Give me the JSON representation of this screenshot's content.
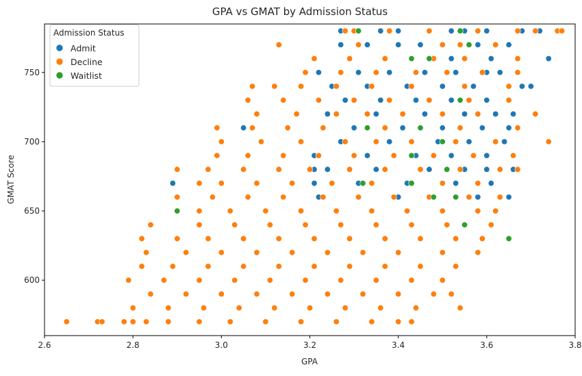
{
  "chart_data": {
    "type": "scatter",
    "title": "GPA vs GMAT by Admission Status",
    "xlabel": "GPA",
    "ylabel": "GMAT Score",
    "xlim": [
      2.6,
      3.8
    ],
    "ylim": [
      560,
      785
    ],
    "xticks": [
      "2.6",
      "2.8",
      "3.0",
      "3.2",
      "3.4",
      "3.6",
      "3.8"
    ],
    "yticks": [
      "600",
      "650",
      "700",
      "750"
    ],
    "grid": false,
    "legend": {
      "title": "Admission Status",
      "placement": "top-left"
    },
    "series": [
      {
        "name": "Admit",
        "color": "#1f77b4",
        "points": [
          [
            3.27,
            780
          ],
          [
            3.36,
            780
          ],
          [
            3.4,
            780
          ],
          [
            3.52,
            780
          ],
          [
            3.55,
            780
          ],
          [
            3.6,
            780
          ],
          [
            3.68,
            780
          ],
          [
            3.72,
            780
          ],
          [
            3.27,
            770
          ],
          [
            3.33,
            770
          ],
          [
            3.4,
            770
          ],
          [
            3.45,
            770
          ],
          [
            3.5,
            770
          ],
          [
            3.58,
            770
          ],
          [
            3.65,
            770
          ],
          [
            3.22,
            750
          ],
          [
            3.31,
            750
          ],
          [
            3.38,
            750
          ],
          [
            3.46,
            750
          ],
          [
            3.53,
            750
          ],
          [
            3.6,
            750
          ],
          [
            3.63,
            750
          ],
          [
            3.74,
            760
          ],
          [
            3.61,
            760
          ],
          [
            3.52,
            760
          ],
          [
            3.25,
            740
          ],
          [
            3.33,
            740
          ],
          [
            3.42,
            740
          ],
          [
            3.5,
            740
          ],
          [
            3.57,
            740
          ],
          [
            3.68,
            740
          ],
          [
            3.7,
            740
          ],
          [
            3.28,
            730
          ],
          [
            3.36,
            730
          ],
          [
            3.44,
            730
          ],
          [
            3.52,
            730
          ],
          [
            3.6,
            730
          ],
          [
            3.24,
            720
          ],
          [
            3.35,
            720
          ],
          [
            3.46,
            720
          ],
          [
            3.55,
            720
          ],
          [
            3.62,
            720
          ],
          [
            3.66,
            720
          ],
          [
            3.05,
            710
          ],
          [
            3.3,
            710
          ],
          [
            3.41,
            710
          ],
          [
            3.5,
            710
          ],
          [
            3.59,
            710
          ],
          [
            3.65,
            710
          ],
          [
            3.27,
            700
          ],
          [
            3.38,
            700
          ],
          [
            3.49,
            700
          ],
          [
            3.56,
            700
          ],
          [
            3.62,
            700
          ],
          [
            3.64,
            700
          ],
          [
            3.21,
            690
          ],
          [
            3.33,
            690
          ],
          [
            3.44,
            690
          ],
          [
            3.52,
            690
          ],
          [
            3.6,
            690
          ],
          [
            3.21,
            680
          ],
          [
            3.24,
            680
          ],
          [
            3.35,
            680
          ],
          [
            3.47,
            680
          ],
          [
            3.55,
            680
          ],
          [
            3.6,
            680
          ],
          [
            3.66,
            680
          ],
          [
            2.89,
            670
          ],
          [
            3.21,
            670
          ],
          [
            3.31,
            670
          ],
          [
            3.42,
            670
          ],
          [
            3.53,
            670
          ],
          [
            3.61,
            670
          ],
          [
            3.22,
            660
          ],
          [
            3.4,
            660
          ],
          [
            3.58,
            660
          ],
          [
            3.65,
            660
          ]
        ]
      },
      {
        "name": "Decline",
        "color": "#ff7f0e",
        "points": [
          [
            3.28,
            780
          ],
          [
            3.3,
            780
          ],
          [
            3.38,
            780
          ],
          [
            3.47,
            780
          ],
          [
            3.58,
            780
          ],
          [
            3.67,
            780
          ],
          [
            3.71,
            780
          ],
          [
            3.76,
            780
          ],
          [
            3.77,
            780
          ],
          [
            3.13,
            770
          ],
          [
            3.31,
            770
          ],
          [
            3.5,
            770
          ],
          [
            3.54,
            770
          ],
          [
            3.62,
            770
          ],
          [
            3.21,
            760
          ],
          [
            3.29,
            760
          ],
          [
            3.37,
            760
          ],
          [
            3.48,
            760
          ],
          [
            3.55,
            760
          ],
          [
            3.67,
            760
          ],
          [
            3.19,
            750
          ],
          [
            3.27,
            750
          ],
          [
            3.35,
            750
          ],
          [
            3.44,
            750
          ],
          [
            3.51,
            750
          ],
          [
            3.59,
            750
          ],
          [
            3.67,
            750
          ],
          [
            3.07,
            740
          ],
          [
            3.12,
            740
          ],
          [
            3.18,
            740
          ],
          [
            3.26,
            740
          ],
          [
            3.34,
            740
          ],
          [
            3.43,
            740
          ],
          [
            3.55,
            740
          ],
          [
            3.65,
            740
          ],
          [
            3.06,
            730
          ],
          [
            3.14,
            730
          ],
          [
            3.22,
            730
          ],
          [
            3.3,
            730
          ],
          [
            3.38,
            730
          ],
          [
            3.47,
            730
          ],
          [
            3.56,
            730
          ],
          [
            3.65,
            730
          ],
          [
            3.08,
            720
          ],
          [
            3.17,
            720
          ],
          [
            3.26,
            720
          ],
          [
            3.33,
            720
          ],
          [
            3.41,
            720
          ],
          [
            3.5,
            720
          ],
          [
            3.58,
            720
          ],
          [
            3.71,
            720
          ],
          [
            2.99,
            710
          ],
          [
            3.07,
            710
          ],
          [
            3.15,
            710
          ],
          [
            3.23,
            710
          ],
          [
            3.37,
            710
          ],
          [
            3.45,
            710
          ],
          [
            3.54,
            710
          ],
          [
            3.67,
            710
          ],
          [
            3.0,
            700
          ],
          [
            3.09,
            700
          ],
          [
            3.18,
            700
          ],
          [
            3.28,
            700
          ],
          [
            3.35,
            700
          ],
          [
            3.43,
            700
          ],
          [
            3.53,
            700
          ],
          [
            3.62,
            700
          ],
          [
            3.74,
            700
          ],
          [
            2.99,
            690
          ],
          [
            3.06,
            690
          ],
          [
            3.14,
            690
          ],
          [
            3.22,
            690
          ],
          [
            3.3,
            690
          ],
          [
            3.39,
            690
          ],
          [
            3.48,
            690
          ],
          [
            3.57,
            690
          ],
          [
            3.66,
            690
          ],
          [
            2.9,
            680
          ],
          [
            2.97,
            680
          ],
          [
            3.05,
            680
          ],
          [
            3.13,
            680
          ],
          [
            3.2,
            680
          ],
          [
            3.29,
            680
          ],
          [
            3.37,
            680
          ],
          [
            3.45,
            680
          ],
          [
            3.54,
            680
          ],
          [
            3.63,
            680
          ],
          [
            3.67,
            680
          ],
          [
            2.95,
            670
          ],
          [
            3.0,
            670
          ],
          [
            3.08,
            670
          ],
          [
            3.16,
            670
          ],
          [
            3.25,
            670
          ],
          [
            3.34,
            670
          ],
          [
            3.43,
            670
          ],
          [
            3.5,
            670
          ],
          [
            3.58,
            670
          ],
          [
            2.9,
            660
          ],
          [
            2.98,
            660
          ],
          [
            3.06,
            660
          ],
          [
            3.14,
            660
          ],
          [
            3.23,
            660
          ],
          [
            3.31,
            660
          ],
          [
            3.39,
            660
          ],
          [
            3.47,
            660
          ],
          [
            3.56,
            660
          ],
          [
            3.63,
            660
          ],
          [
            2.95,
            650
          ],
          [
            3.02,
            650
          ],
          [
            3.1,
            650
          ],
          [
            3.18,
            650
          ],
          [
            3.26,
            650
          ],
          [
            3.34,
            650
          ],
          [
            3.42,
            650
          ],
          [
            3.5,
            650
          ],
          [
            3.58,
            650
          ],
          [
            3.62,
            650
          ],
          [
            2.84,
            640
          ],
          [
            2.95,
            640
          ],
          [
            3.03,
            640
          ],
          [
            3.11,
            640
          ],
          [
            3.19,
            640
          ],
          [
            3.27,
            640
          ],
          [
            3.35,
            640
          ],
          [
            3.43,
            640
          ],
          [
            3.51,
            640
          ],
          [
            3.61,
            640
          ],
          [
            2.9,
            630
          ],
          [
            2.97,
            630
          ],
          [
            3.05,
            630
          ],
          [
            3.13,
            630
          ],
          [
            3.21,
            630
          ],
          [
            3.29,
            630
          ],
          [
            3.37,
            630
          ],
          [
            3.45,
            630
          ],
          [
            3.53,
            630
          ],
          [
            3.59,
            630
          ],
          [
            2.82,
            630
          ],
          [
            2.83,
            620
          ],
          [
            2.92,
            620
          ],
          [
            3.0,
            620
          ],
          [
            3.08,
            620
          ],
          [
            3.16,
            620
          ],
          [
            3.24,
            620
          ],
          [
            3.32,
            620
          ],
          [
            3.4,
            620
          ],
          [
            3.5,
            620
          ],
          [
            3.58,
            620
          ],
          [
            2.82,
            610
          ],
          [
            2.89,
            610
          ],
          [
            2.97,
            610
          ],
          [
            3.05,
            610
          ],
          [
            3.13,
            610
          ],
          [
            3.21,
            610
          ],
          [
            3.29,
            610
          ],
          [
            3.37,
            610
          ],
          [
            3.45,
            610
          ],
          [
            3.53,
            610
          ],
          [
            2.79,
            600
          ],
          [
            2.87,
            600
          ],
          [
            2.95,
            600
          ],
          [
            3.03,
            600
          ],
          [
            3.11,
            600
          ],
          [
            3.19,
            600
          ],
          [
            3.27,
            600
          ],
          [
            3.35,
            600
          ],
          [
            3.43,
            600
          ],
          [
            3.5,
            600
          ],
          [
            2.84,
            590
          ],
          [
            2.92,
            590
          ],
          [
            3.0,
            590
          ],
          [
            3.08,
            590
          ],
          [
            3.16,
            590
          ],
          [
            3.24,
            590
          ],
          [
            3.32,
            590
          ],
          [
            3.4,
            590
          ],
          [
            3.48,
            590
          ],
          [
            3.52,
            590
          ],
          [
            2.8,
            580
          ],
          [
            2.88,
            580
          ],
          [
            2.96,
            580
          ],
          [
            3.04,
            580
          ],
          [
            3.12,
            580
          ],
          [
            3.2,
            580
          ],
          [
            3.28,
            580
          ],
          [
            3.36,
            580
          ],
          [
            3.44,
            580
          ],
          [
            3.54,
            580
          ],
          [
            2.65,
            570
          ],
          [
            2.72,
            570
          ],
          [
            2.73,
            570
          ],
          [
            2.78,
            570
          ],
          [
            2.8,
            570
          ],
          [
            2.83,
            570
          ],
          [
            2.88,
            570
          ],
          [
            2.95,
            570
          ],
          [
            3.02,
            570
          ],
          [
            3.1,
            570
          ],
          [
            3.18,
            570
          ],
          [
            3.26,
            570
          ],
          [
            3.34,
            570
          ],
          [
            3.4,
            570
          ],
          [
            3.43,
            570
          ]
        ]
      },
      {
        "name": "Waitlist",
        "color": "#2ca02c",
        "points": [
          [
            3.31,
            780
          ],
          [
            3.54,
            780
          ],
          [
            3.56,
            770
          ],
          [
            3.43,
            760
          ],
          [
            3.47,
            760
          ],
          [
            3.54,
            730
          ],
          [
            3.33,
            710
          ],
          [
            3.45,
            710
          ],
          [
            3.5,
            700
          ],
          [
            3.43,
            690
          ],
          [
            3.51,
            680
          ],
          [
            3.32,
            670
          ],
          [
            3.43,
            670
          ],
          [
            3.48,
            660
          ],
          [
            3.53,
            660
          ],
          [
            2.9,
            650
          ],
          [
            3.55,
            640
          ],
          [
            3.65,
            630
          ]
        ]
      }
    ]
  }
}
